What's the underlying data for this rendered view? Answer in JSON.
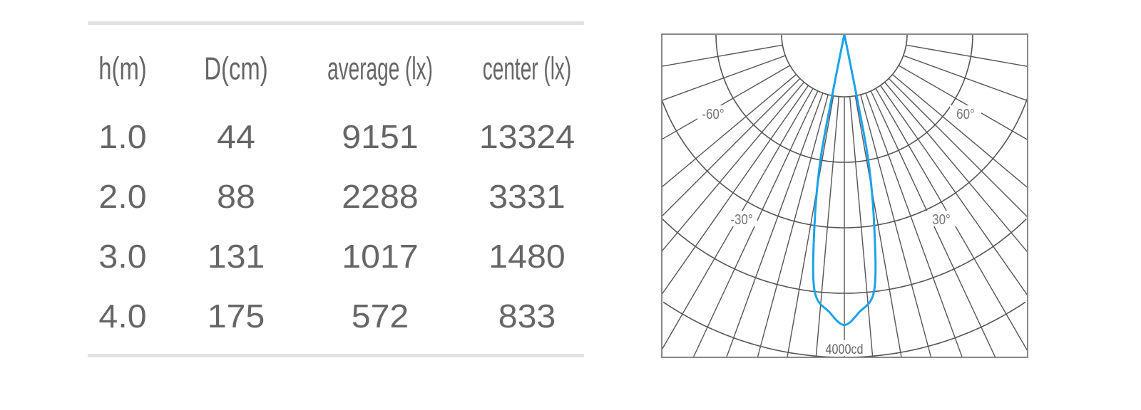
{
  "table": {
    "headers": [
      "h(m)",
      "D(cm)",
      "average (lx)",
      "center (lx)"
    ],
    "rows": [
      [
        "1.0",
        "44",
        "9151",
        "13324"
      ],
      [
        "2.0",
        "88",
        "2288",
        "3331"
      ],
      [
        "3.0",
        "131",
        "1017",
        "1480"
      ],
      [
        "4.0",
        "175",
        "572",
        "833"
      ]
    ]
  },
  "chart_data": [
    {
      "type": "table",
      "columns": [
        "h(m)",
        "D(cm)",
        "average (lx)",
        "center (lx)"
      ],
      "rows": [
        [
          1.0,
          44,
          9151,
          13324
        ],
        [
          2.0,
          88,
          2288,
          3331
        ],
        [
          3.0,
          131,
          1017,
          1480
        ],
        [
          4.0,
          175,
          572,
          833
        ]
      ]
    },
    {
      "type": "polar",
      "angle_labels": [
        "-60°",
        "60°",
        "-30°",
        "30°"
      ],
      "radial_label": "4000cd",
      "radial_max": 4000,
      "series_color": "#1aa3e8",
      "grid_color": "#555555",
      "series": [
        {
          "angles_deg": [
            -12,
            -11.2,
            -10.7,
            -8.8,
            -6.6,
            -3,
            0,
            3,
            6.6,
            8.8,
            10.7,
            11.2,
            12
          ],
          "intensity_cd": [
            0,
            810,
            1610,
            2420,
            3200,
            3450,
            3600,
            3450,
            3200,
            2420,
            1610,
            810,
            0
          ]
        }
      ]
    }
  ]
}
